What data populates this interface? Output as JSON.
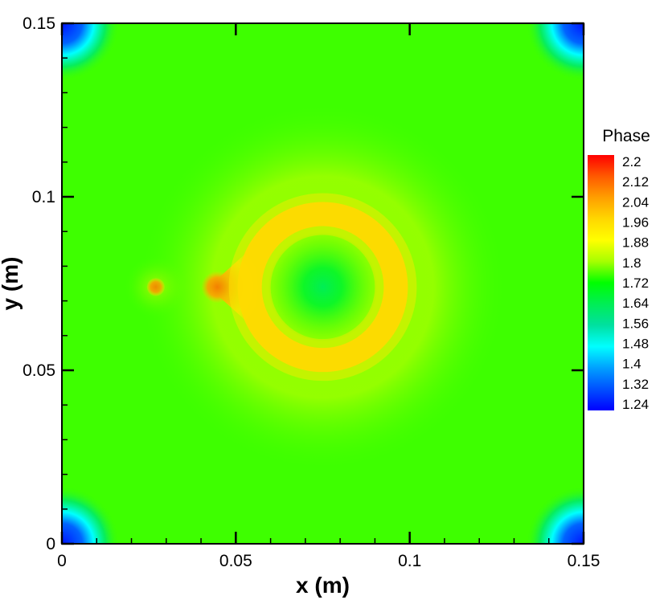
{
  "chart_data": {
    "type": "heatmap",
    "title": "",
    "xlabel": "x (m)",
    "ylabel": "y (m)",
    "xlim": [
      0,
      0.15
    ],
    "ylim": [
      0,
      0.15
    ],
    "x_ticks": [
      "0",
      "0.05",
      "0.1",
      "0.15"
    ],
    "x_tick_values": [
      0,
      0.05,
      0.1,
      0.15
    ],
    "y_ticks": [
      "0",
      "0.05",
      "0.1",
      "0.15"
    ],
    "y_tick_values": [
      0,
      0.05,
      0.1,
      0.15
    ],
    "colorbar": {
      "title": "Phase",
      "levels": [
        "2.2",
        "2.12",
        "2.04",
        "1.96",
        "1.88",
        "1.8",
        "1.72",
        "1.64",
        "1.56",
        "1.48",
        "1.4",
        "1.32",
        "1.24"
      ],
      "min": 1.24,
      "max": 2.2,
      "colors": [
        "#ff0000",
        "#ff5a00",
        "#ff9f00",
        "#ffd700",
        "#ffff00",
        "#a6ff00",
        "#00ff00",
        "#00ee55",
        "#00e0a0",
        "#00ffff",
        "#00a0ff",
        "#0050ff",
        "#0000ff"
      ]
    },
    "field": {
      "background_value": 1.75,
      "features": [
        {
          "feature": "corner low",
          "x": 0.0,
          "y": 0.15,
          "value": 1.26
        },
        {
          "feature": "corner low",
          "x": 0.15,
          "y": 0.15,
          "value": 1.26
        },
        {
          "feature": "corner low",
          "x": 0.0,
          "y": 0.0,
          "value": 1.26
        },
        {
          "feature": "corner low",
          "x": 0.15,
          "y": 0.0,
          "value": 1.26
        },
        {
          "feature": "small source",
          "x": 0.027,
          "y": 0.074,
          "value": 2.04
        },
        {
          "feature": "peak",
          "x": 0.044,
          "y": 0.074,
          "value": 2.2
        },
        {
          "feature": "ring",
          "x": 0.075,
          "y": 0.074,
          "radius": 0.021,
          "value": 1.97
        },
        {
          "feature": "ring center",
          "x": 0.075,
          "y": 0.074,
          "value": 1.64
        }
      ]
    }
  }
}
